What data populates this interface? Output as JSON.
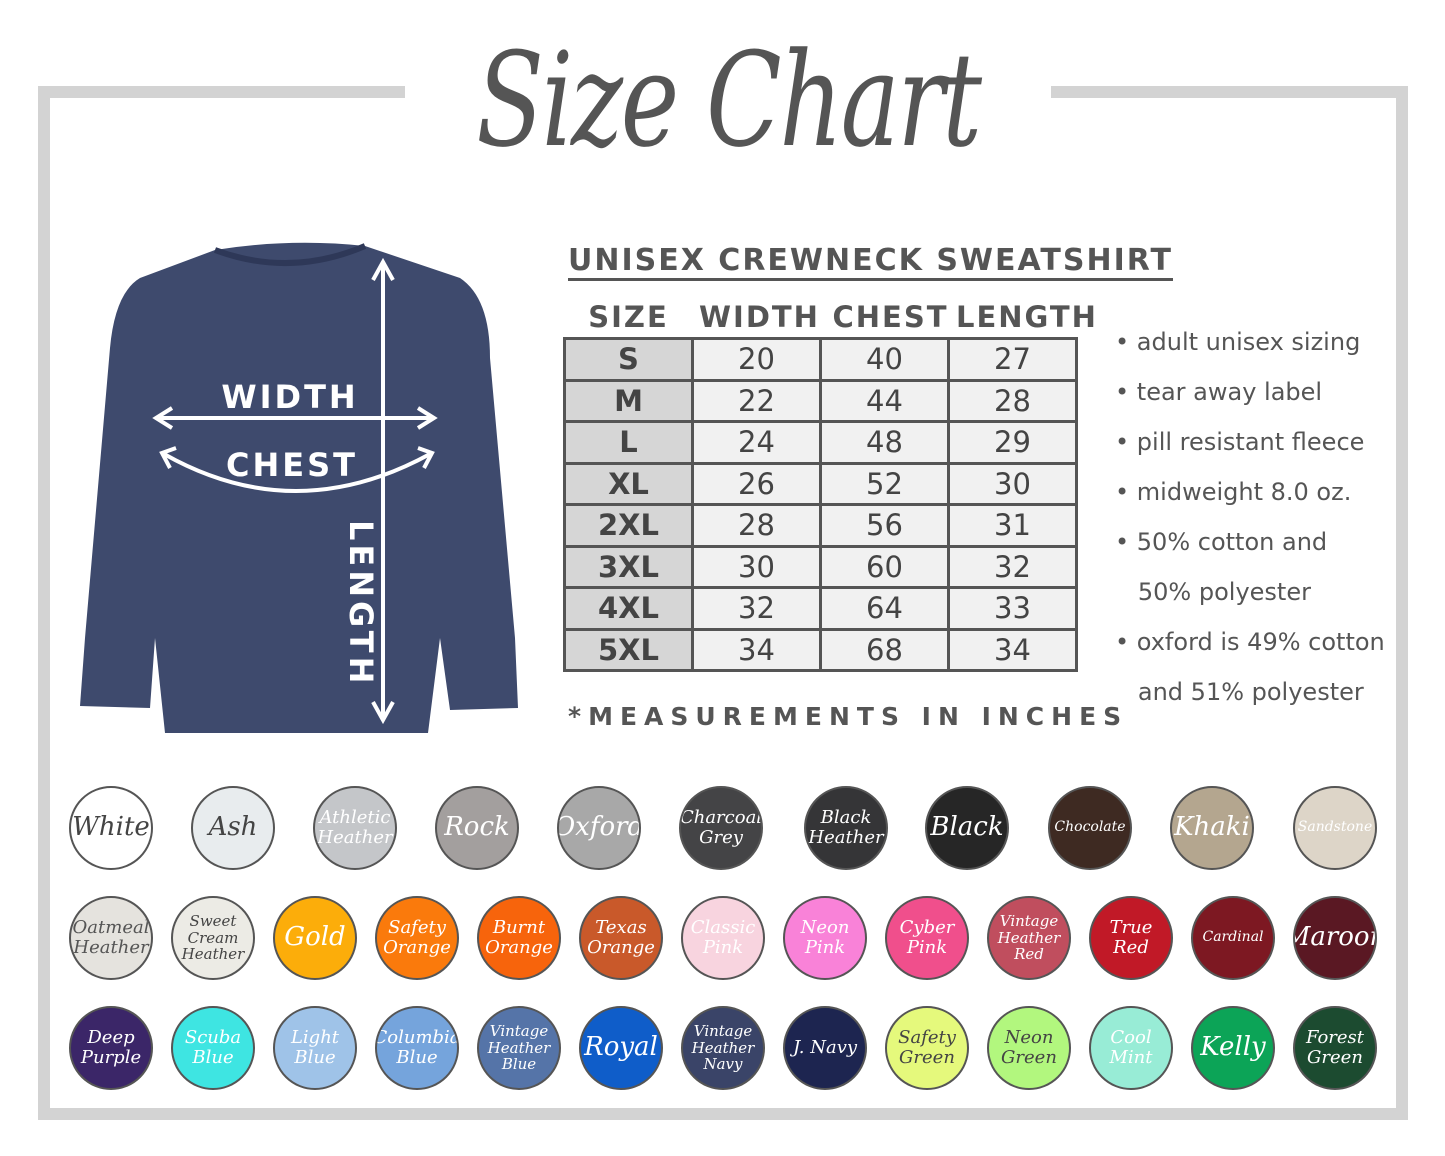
{
  "title": "Size Chart",
  "garment_labels": {
    "width": "WIDTH",
    "chest": "CHEST",
    "length": "LENGTH"
  },
  "table": {
    "title": "UNISEX CREWNECK SWEATSHIRT",
    "headers": [
      "SIZE",
      "WIDTH",
      "CHEST",
      "LENGTH"
    ],
    "rows": [
      [
        "S",
        "20",
        "40",
        "27"
      ],
      [
        "M",
        "22",
        "44",
        "28"
      ],
      [
        "L",
        "24",
        "48",
        "29"
      ],
      [
        "XL",
        "26",
        "52",
        "30"
      ],
      [
        "2XL",
        "28",
        "56",
        "31"
      ],
      [
        "3XL",
        "30",
        "60",
        "32"
      ],
      [
        "4XL",
        "32",
        "64",
        "33"
      ],
      [
        "5XL",
        "34",
        "68",
        "34"
      ]
    ],
    "note": "*MEASUREMENTS IN INCHES"
  },
  "features": [
    "• adult unisex sizing",
    "• tear away label",
    "• pill resistant fleece",
    "• midweight 8.0 oz.",
    "• 50% cotton and",
    "   50% polyester",
    "• oxford is 49% cotton",
    "   and 51% polyester"
  ],
  "colors": {
    "frame": "#d3d3d3",
    "shirt": "#3e4a6d",
    "text": "#555555"
  },
  "swatches": [
    [
      {
        "name": "White",
        "color": "#ffffff",
        "text": "#444"
      },
      {
        "name": "Ash",
        "color": "#e8ecee",
        "text": "#444"
      },
      {
        "name": "Athletic Heather",
        "color": "#c4c6c9",
        "text": "#fff"
      },
      {
        "name": "Rock",
        "color": "#a39f9e",
        "text": "#fff"
      },
      {
        "name": "Oxford",
        "color": "#a8a8a8",
        "text": "#fff"
      },
      {
        "name": "Charcoal Grey",
        "color": "#444446",
        "text": "#fff"
      },
      {
        "name": "Black Heather",
        "color": "#353537",
        "text": "#fff"
      },
      {
        "name": "Black",
        "color": "#262626",
        "text": "#fff"
      },
      {
        "name": "Chocolate",
        "color": "#3e2a22",
        "text": "#fff"
      },
      {
        "name": "Khaki",
        "color": "#b4a68f",
        "text": "#fff"
      },
      {
        "name": "Sandstone",
        "color": "#ddd5c8",
        "text": "#fff"
      }
    ],
    [
      {
        "name": "Oatmeal Heather",
        "color": "#e5e3de",
        "text": "#555"
      },
      {
        "name": "Sweet Cream Heather",
        "color": "#ecebe5",
        "text": "#444"
      },
      {
        "name": "Gold",
        "color": "#fcad0a",
        "text": "#fff"
      },
      {
        "name": "Safety Orange",
        "color": "#fa7a0c",
        "text": "#fff"
      },
      {
        "name": "Burnt Orange",
        "color": "#f7640c",
        "text": "#fff"
      },
      {
        "name": "Texas Orange",
        "color": "#c9592a",
        "text": "#fff"
      },
      {
        "name": "Classic Pink",
        "color": "#f8d4df",
        "text": "#fff"
      },
      {
        "name": "Neon Pink",
        "color": "#f982d8",
        "text": "#fff"
      },
      {
        "name": "Cyber Pink",
        "color": "#f04f8c",
        "text": "#fff"
      },
      {
        "name": "Vintage Heather Red",
        "color": "#c04e5e",
        "text": "#fff"
      },
      {
        "name": "True Red",
        "color": "#c11927",
        "text": "#fff"
      },
      {
        "name": "Cardinal",
        "color": "#7d1822",
        "text": "#fff"
      },
      {
        "name": "Maroon",
        "color": "#5a1823",
        "text": "#fff"
      }
    ],
    [
      {
        "name": "Deep Purple",
        "color": "#3b2668",
        "text": "#fff"
      },
      {
        "name": "Scuba Blue",
        "color": "#3ee5e2",
        "text": "#fff"
      },
      {
        "name": "Light Blue",
        "color": "#9fc3e8",
        "text": "#fff"
      },
      {
        "name": "Columbia Blue",
        "color": "#75a4dc",
        "text": "#fff"
      },
      {
        "name": "Vintage Heather Blue",
        "color": "#5574a8",
        "text": "#fff"
      },
      {
        "name": "Royal",
        "color": "#0f5dc9",
        "text": "#fff"
      },
      {
        "name": "Vintage Heather Navy",
        "color": "#3a4468",
        "text": "#fff"
      },
      {
        "name": "J. Navy",
        "color": "#1d2550",
        "text": "#fff"
      },
      {
        "name": "Safety Green",
        "color": "#e5f97c",
        "text": "#444"
      },
      {
        "name": "Neon Green",
        "color": "#b2f77e",
        "text": "#444"
      },
      {
        "name": "Cool Mint",
        "color": "#98ecd6",
        "text": "#fff"
      },
      {
        "name": "Kelly",
        "color": "#0ca457",
        "text": "#fff"
      },
      {
        "name": "Forest Green",
        "color": "#1c4b30",
        "text": "#fff"
      }
    ]
  ]
}
